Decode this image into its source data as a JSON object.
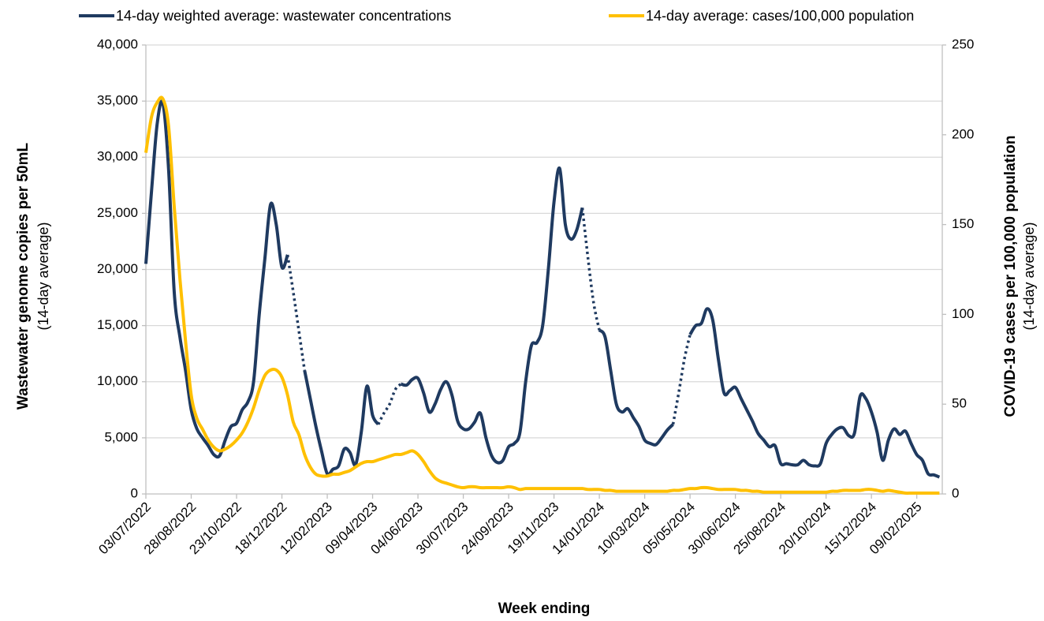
{
  "chart_data": {
    "type": "line",
    "x_label": "Week ending",
    "y_label": "Wastewater genome copies per 50mL",
    "y_sublabel": "(14-day average)",
    "y2_label": "COVID-19 cases per 100,000 population",
    "y2_sublabel": "(14-day average)",
    "categories": [
      "03/07/2022",
      null,
      null,
      null,
      null,
      null,
      null,
      null,
      "28/08/2022",
      null,
      null,
      null,
      null,
      null,
      null,
      null,
      "23/10/2022",
      null,
      null,
      null,
      null,
      null,
      null,
      null,
      "18/12/2022",
      null,
      null,
      null,
      null,
      null,
      null,
      null,
      "12/02/2023",
      null,
      null,
      null,
      null,
      null,
      null,
      null,
      "09/04/2023",
      null,
      null,
      null,
      null,
      null,
      null,
      null,
      "04/06/2023",
      null,
      null,
      null,
      null,
      null,
      null,
      null,
      "30/07/2023",
      null,
      null,
      null,
      null,
      null,
      null,
      null,
      "24/09/2023",
      null,
      null,
      null,
      null,
      null,
      null,
      null,
      "19/11/2023",
      null,
      null,
      null,
      null,
      null,
      null,
      null,
      "14/01/2024",
      null,
      null,
      null,
      null,
      null,
      null,
      null,
      "10/03/2024",
      null,
      null,
      null,
      null,
      null,
      null,
      null,
      "05/05/2024",
      null,
      null,
      null,
      null,
      null,
      null,
      null,
      "30/06/2024",
      null,
      null,
      null,
      null,
      null,
      null,
      null,
      "25/08/2024",
      null,
      null,
      null,
      null,
      null,
      null,
      null,
      "20/10/2024",
      null,
      null,
      null,
      null,
      null,
      null,
      null,
      "15/12/2024",
      null,
      null,
      null,
      null,
      null,
      null,
      null,
      "09/02/2025",
      null,
      null,
      null,
      null
    ],
    "series": [
      {
        "name": "14-day weighted average: wastewater concentrations",
        "color": "#1f3a60",
        "axis": "y",
        "dashed_spans": [
          [
            25,
            28
          ],
          [
            41,
            45
          ],
          [
            77,
            80
          ],
          [
            93,
            96
          ]
        ],
        "values": [
          20500,
          27000,
          33000,
          34800,
          29000,
          18000,
          14000,
          11000,
          7500,
          5800,
          5000,
          4300,
          3500,
          3400,
          4800,
          6000,
          6300,
          7500,
          8200,
          10000,
          16000,
          21000,
          25800,
          24000,
          20200,
          21300,
          18000,
          14500,
          11000,
          8500,
          6000,
          3800,
          1800,
          2200,
          2500,
          4000,
          3700,
          2600,
          5500,
          9600,
          7000,
          6200,
          7200,
          8000,
          9300,
          9800,
          9700,
          10200,
          10300,
          9000,
          7300,
          8000,
          9300,
          10000,
          8800,
          6500,
          5800,
          5800,
          6400,
          7200,
          5000,
          3400,
          2800,
          3000,
          4200,
          4500,
          5500,
          10000,
          13200,
          13500,
          15000,
          20000,
          26000,
          29000,
          24000,
          22700,
          23500,
          25500,
          21000,
          17000,
          14600,
          14000,
          11000,
          8000,
          7300,
          7600,
          6800,
          6000,
          4800,
          4500,
          4400,
          5000,
          5700,
          6200,
          9000,
          12000,
          14200,
          15000,
          15200,
          16500,
          15500,
          12000,
          9000,
          9200,
          9500,
          8500,
          7500,
          6500,
          5400,
          4800,
          4200,
          4300,
          2700,
          2700,
          2600,
          2600,
          3000,
          2600,
          2500,
          2700,
          4500,
          5300,
          5800,
          5900,
          5200,
          5400,
          8700,
          8500,
          7300,
          5500,
          3000,
          4800,
          5800,
          5300,
          5600,
          4500,
          3500,
          3000,
          1800,
          1700,
          1500
        ]
      },
      {
        "name": "14-day average: cases/100,000 population",
        "color": "#ffc000",
        "axis": "y2",
        "values": [
          190,
          210,
          218,
          220,
          205,
          160,
          120,
          85,
          55,
          42,
          36,
          30,
          26,
          24,
          25,
          27,
          30,
          34,
          40,
          48,
          58,
          66,
          69,
          69,
          65,
          55,
          40,
          33,
          22,
          15,
          11,
          10,
          10,
          11,
          11,
          12,
          13,
          15,
          17,
          18,
          18,
          19,
          20,
          21,
          22,
          22,
          23,
          24,
          22,
          18,
          13,
          9,
          7,
          6,
          5,
          4,
          3.5,
          4,
          4,
          3.5,
          3.5,
          3.5,
          3.5,
          3.5,
          4,
          3.5,
          2.5,
          3,
          3,
          3,
          3,
          3,
          3,
          3,
          3,
          3,
          3,
          3,
          2.5,
          2.5,
          2.5,
          2,
          2,
          1.5,
          1.5,
          1.5,
          1.5,
          1.5,
          1.5,
          1.5,
          1.5,
          1.5,
          1.5,
          2,
          2,
          2.5,
          3,
          3,
          3.5,
          3.5,
          3,
          2.5,
          2.5,
          2.5,
          2.5,
          2,
          2,
          1.5,
          1.5,
          1,
          1,
          1,
          1,
          1,
          1,
          1,
          1,
          1,
          1,
          1,
          1,
          1.5,
          1.5,
          2,
          2,
          2,
          2,
          2.5,
          2.5,
          2,
          1.5,
          2,
          1.5,
          1,
          0.5,
          0.5,
          0.5,
          0.5,
          0.5,
          0.5,
          0.5
        ]
      }
    ],
    "ylim": [
      0,
      40000
    ],
    "yticks": [
      0,
      {
        "value": 5000,
        "label": "5,000"
      },
      {
        "value": 10000,
        "label": "10,000"
      },
      {
        "value": 15000,
        "label": "15,000"
      },
      {
        "value": 20000,
        "label": "20,000"
      },
      {
        "value": 25000,
        "label": "25,000"
      },
      {
        "value": 30000,
        "label": "30,000"
      },
      {
        "value": 35000,
        "label": "35,000"
      },
      {
        "value": 40000,
        "label": "40,000"
      }
    ],
    "y2lim": [
      0,
      250
    ],
    "y2ticks": [
      0,
      50,
      100,
      150,
      200,
      250
    ],
    "grid": true,
    "legend": "top"
  }
}
